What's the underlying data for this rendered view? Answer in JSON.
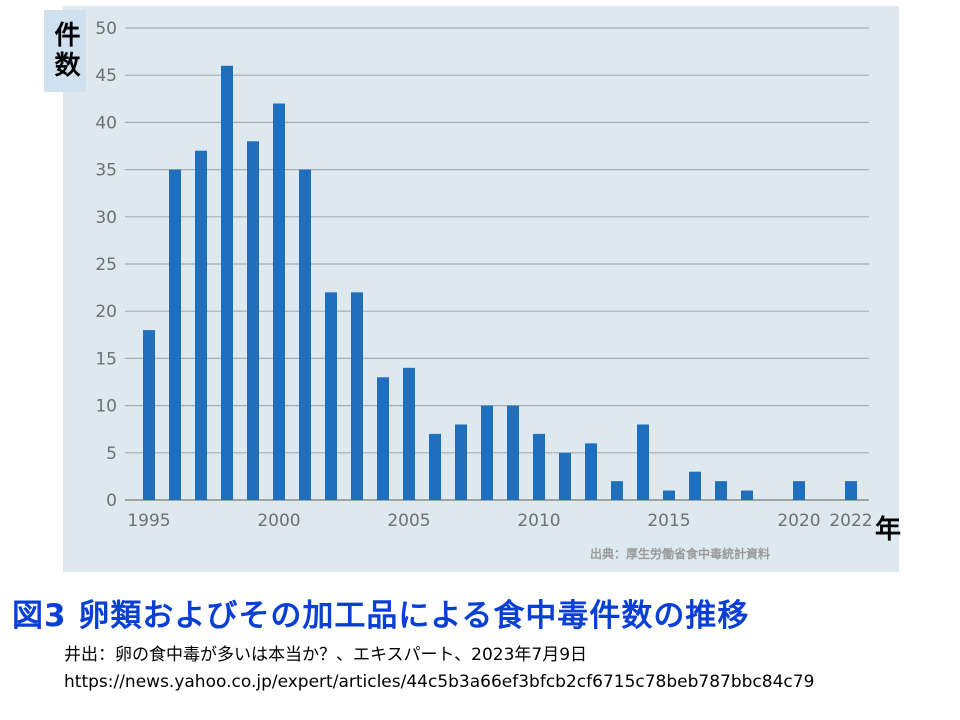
{
  "chart_data": {
    "type": "bar",
    "ylabel": "件数",
    "xlabel": "年",
    "ylim": [
      0,
      50
    ],
    "yticks": [
      0,
      5,
      10,
      15,
      20,
      25,
      30,
      35,
      40,
      45,
      50
    ],
    "xticks": [
      "1995",
      "2000",
      "2005",
      "2010",
      "2015",
      "2020",
      "2022"
    ],
    "grid": true,
    "bar_color": "#1f6fbd",
    "x": [
      1995,
      1996,
      1997,
      1998,
      1999,
      2000,
      2001,
      2002,
      2003,
      2004,
      2005,
      2006,
      2007,
      2008,
      2009,
      2010,
      2011,
      2012,
      2013,
      2014,
      2015,
      2016,
      2017,
      2018,
      2019,
      2020,
      2021,
      2022
    ],
    "values": [
      18,
      35,
      37,
      46,
      38,
      42,
      35,
      22,
      22,
      13,
      14,
      7,
      8,
      10,
      10,
      7,
      5,
      6,
      2,
      8,
      1,
      3,
      2,
      1,
      0,
      2,
      0,
      2
    ],
    "source": "出典：厚生労働省食中毒統計資料"
  },
  "caption": {
    "title": "図3  卵類およびその加工品による食中毒件数の推移",
    "citation": "井出：卵の食中毒が多いは本当か？、エキスパート、2023年7月9日",
    "url": "https://news.yahoo.co.jp/expert/articles/44c5b3a66ef3bfcb2cf6715c78beb787bbc84c79"
  }
}
